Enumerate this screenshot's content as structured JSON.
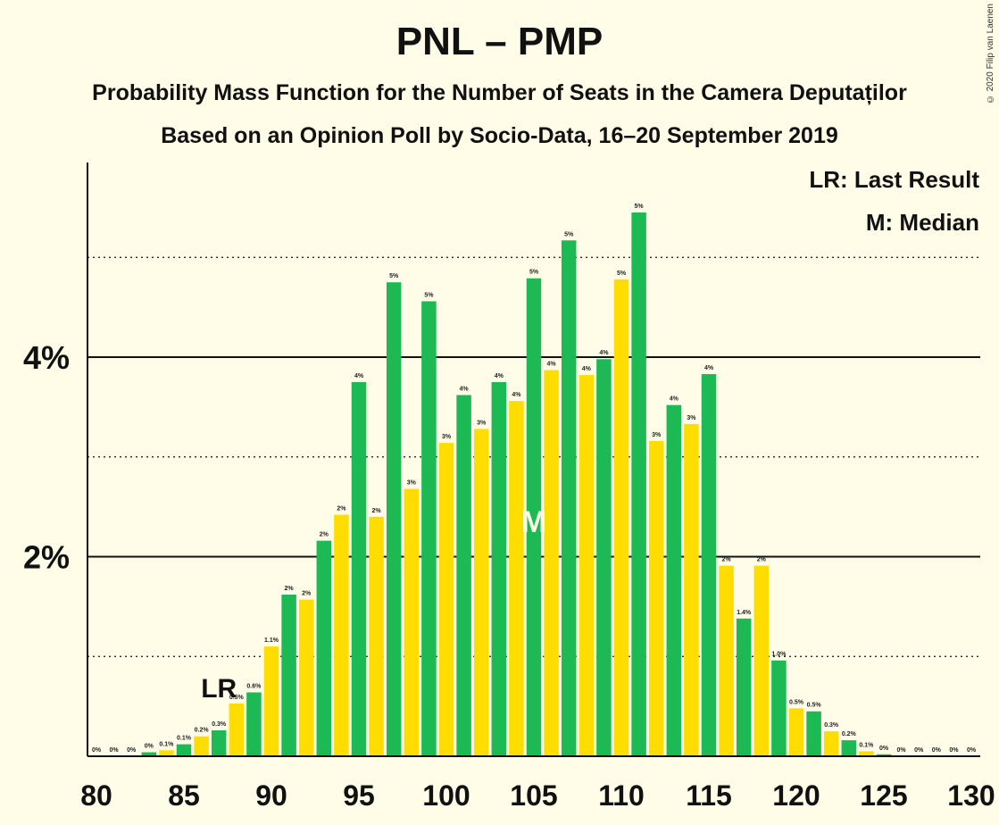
{
  "title": "PNL – PMP",
  "subtitle": "Probability Mass Function for the Number of Seats in the Camera Deputaților",
  "subtitle2": "Based on an Opinion Poll by Socio-Data, 16–20 September 2019",
  "copyright": "© 2020 Filip van Laenen",
  "legend": {
    "lr": "LR: Last Result",
    "m": "M: Median"
  },
  "colors": {
    "green": "#1DB954",
    "yellow": "#FFDD00",
    "background": "#FFFDE8"
  },
  "chart_data": {
    "type": "bar",
    "x": [
      80,
      81,
      82,
      83,
      84,
      85,
      86,
      87,
      88,
      89,
      90,
      91,
      92,
      93,
      94,
      95,
      96,
      97,
      98,
      99,
      100,
      101,
      102,
      103,
      104,
      105,
      106,
      107,
      108,
      109,
      110,
      111,
      112,
      113,
      114,
      115,
      116,
      117,
      118,
      119,
      120,
      121,
      122,
      123,
      124,
      125,
      126,
      127,
      128,
      129,
      130
    ],
    "values": [
      0,
      0,
      0,
      0.04,
      0.06,
      0.12,
      0.2,
      0.26,
      0.53,
      0.64,
      1.1,
      1.62,
      1.57,
      2.16,
      2.42,
      3.75,
      2.4,
      4.75,
      2.68,
      4.56,
      3.14,
      3.62,
      3.28,
      3.75,
      3.56,
      4.79,
      3.87,
      5.17,
      3.82,
      3.98,
      4.78,
      5.45,
      3.16,
      3.52,
      3.33,
      3.83,
      1.91,
      1.38,
      1.91,
      0.96,
      0.48,
      0.45,
      0.25,
      0.16,
      0.05,
      0.02,
      0,
      0,
      0,
      0,
      0
    ],
    "labels": [
      "0%",
      "0%",
      "0%",
      "0%",
      "0.1%",
      "0.1%",
      "0.2%",
      "0.3%",
      "0.5%",
      "0.6%",
      "1.1%",
      "2%",
      "2%",
      "2%",
      "2%",
      "4%",
      "2%",
      "5%",
      "3%",
      "5%",
      "3%",
      "4%",
      "3%",
      "4%",
      "4%",
      "5%",
      "4%",
      "5%",
      "4%",
      "4%",
      "5%",
      "5%",
      "3%",
      "4%",
      "3%",
      "4%",
      "2%",
      "1.4%",
      "2%",
      "1.0%",
      "0.5%",
      "0.5%",
      "0.3%",
      "0.2%",
      "0.1%",
      "0%",
      "0%",
      "0%",
      "0%",
      "0%",
      "0%"
    ],
    "xticks": [
      80,
      85,
      90,
      95,
      100,
      105,
      110,
      115,
      120,
      125,
      130
    ],
    "yticks": [
      {
        "value": 2,
        "label": "2%"
      },
      {
        "value": 4,
        "label": "4%"
      }
    ],
    "ylim": [
      0,
      5.9
    ],
    "dotted_gridlines": [
      1,
      3,
      5
    ],
    "solid_gridlines": [
      2,
      4
    ],
    "last_result": {
      "seat": 87,
      "label": "LR"
    },
    "median": {
      "seat": 105,
      "label": "M"
    },
    "bar_colors": "alternating: even seats yellow, odd seats green"
  }
}
